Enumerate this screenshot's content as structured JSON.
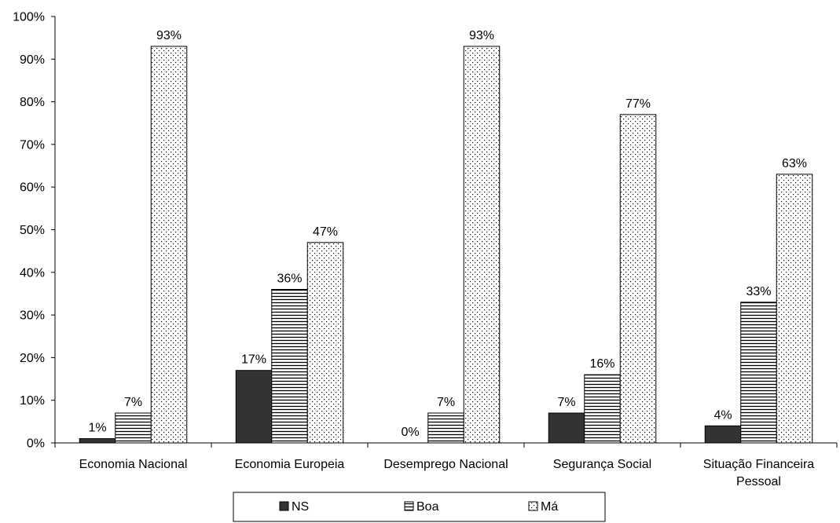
{
  "chart_data": {
    "type": "bar",
    "categories": [
      [
        "Economia Nacional"
      ],
      [
        "Economia Europeia"
      ],
      [
        "Desemprego Nacional"
      ],
      [
        "Segurança Social"
      ],
      [
        "Situação Financeira",
        "Pessoal"
      ]
    ],
    "series": [
      {
        "name": "NS",
        "values": [
          1,
          17,
          0,
          7,
          4
        ],
        "labels": [
          "1%",
          "17%",
          "0%",
          "7%",
          "4%"
        ],
        "pattern": "solid",
        "color": "#333333"
      },
      {
        "name": "Boa",
        "values": [
          7,
          36,
          7,
          16,
          33
        ],
        "labels": [
          "7%",
          "36%",
          "7%",
          "16%",
          "33%"
        ],
        "pattern": "horizontal-lines",
        "color": "#000000"
      },
      {
        "name": "Má",
        "values": [
          93,
          47,
          93,
          77,
          63
        ],
        "labels": [
          "93%",
          "47%",
          "93%",
          "77%",
          "63%"
        ],
        "pattern": "dots",
        "color": "#000000"
      }
    ],
    "yticks": [
      "0%",
      "10%",
      "20%",
      "30%",
      "40%",
      "50%",
      "60%",
      "70%",
      "80%",
      "90%",
      "100%"
    ],
    "ylim": [
      0,
      100
    ],
    "grid": false,
    "legend_position": "bottom"
  }
}
